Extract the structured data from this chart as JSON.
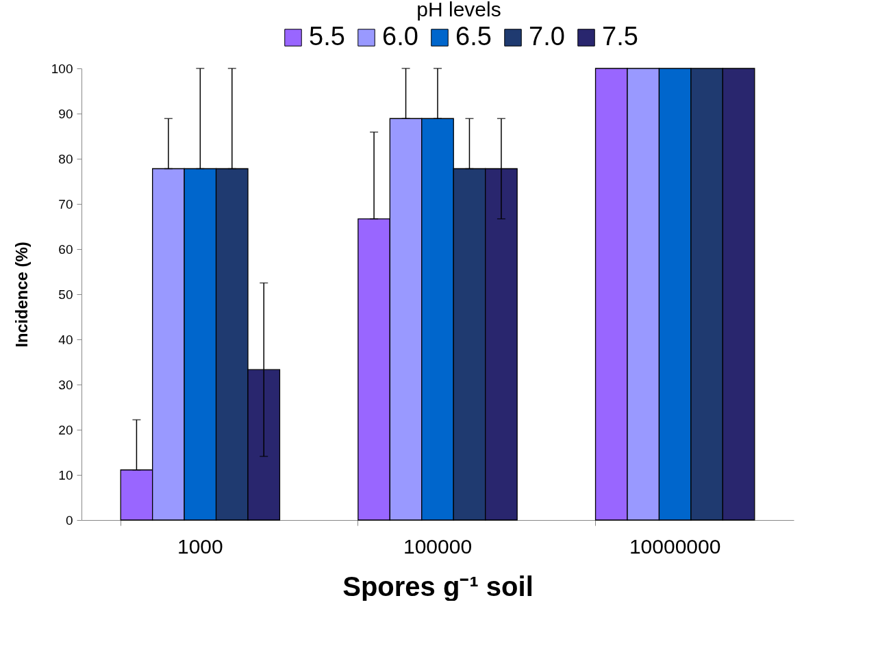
{
  "chart_data": {
    "type": "bar",
    "xlabel": "Spores g⁻¹ soil",
    "ylabel": "Incidence (%)",
    "legend_title": "pH levels",
    "legend": "top",
    "categories": [
      "1000",
      "100000",
      "10000000"
    ],
    "ylim": [
      0,
      100
    ],
    "yticks": [
      0,
      10,
      20,
      30,
      40,
      50,
      60,
      70,
      80,
      90,
      100
    ],
    "grid": false,
    "series": [
      {
        "name": "5.5",
        "color": "#9966ff",
        "values": [
          11.1,
          66.7,
          100
        ],
        "errors": [
          [
            11.1,
            22.2
          ],
          [
            66.7,
            85.9
          ],
          null
        ]
      },
      {
        "name": "6.0",
        "color": "#9999ff",
        "values": [
          77.8,
          88.9,
          100
        ],
        "errors": [
          [
            77.8,
            88.9
          ],
          [
            88.9,
            100
          ],
          null
        ]
      },
      {
        "name": "6.5",
        "color": "#0066cc",
        "values": [
          77.8,
          88.9,
          100
        ],
        "errors": [
          [
            77.8,
            100
          ],
          [
            88.9,
            100
          ],
          null
        ]
      },
      {
        "name": "7.0",
        "color": "#1f3a70",
        "values": [
          77.8,
          77.8,
          100
        ],
        "errors": [
          [
            77.8,
            100
          ],
          [
            77.8,
            88.9
          ],
          null
        ]
      },
      {
        "name": "7.5",
        "color": "#29266e",
        "values": [
          33.3,
          77.8,
          100
        ],
        "errors": [
          [
            14.1,
            52.5
          ],
          [
            66.7,
            88.9
          ],
          null
        ]
      }
    ]
  }
}
